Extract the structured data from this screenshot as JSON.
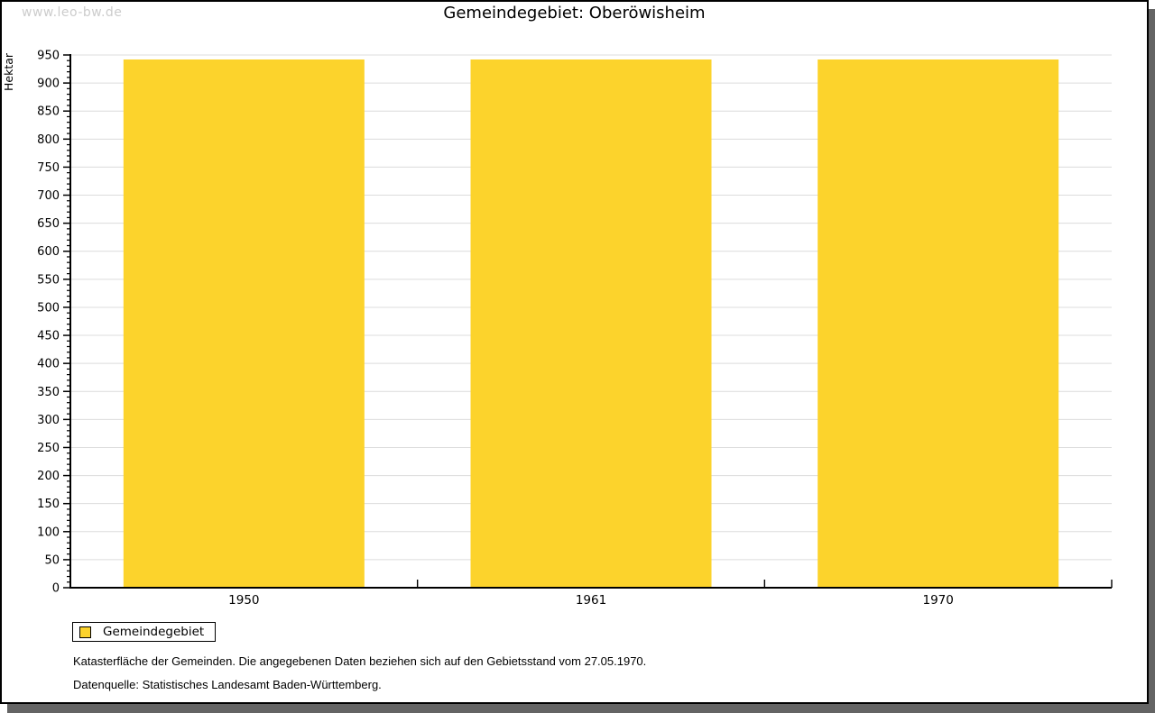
{
  "watermark": "www.leo-bw.de",
  "title": "Gemeindegebiet: Oberöwisheim",
  "legend": {
    "label": "Gemeindegebiet"
  },
  "footer": {
    "line1": "Katasterfläche der Gemeinden. Die angegebenen Daten beziehen sich auf den Gebietsstand vom 27.05.1970.",
    "line2": "Datenquelle: Statistisches Landesamt Baden-Württemberg."
  },
  "colors": {
    "bar": "#fcd32c",
    "grid": "#dcdcdc",
    "axis": "#000000",
    "watermark": "#cccccc",
    "shadow": "#646464"
  },
  "chart_data": {
    "type": "bar",
    "title": "Gemeindegebiet: Oberöwisheim",
    "categories": [
      "1950",
      "1961",
      "1970"
    ],
    "series": [
      {
        "name": "Gemeindegebiet",
        "values": [
          942,
          942,
          942
        ]
      }
    ],
    "xlabel": "",
    "ylabel": "Hektar",
    "ylim": [
      0,
      950
    ],
    "y_major_step": 50,
    "y_minor_step": 10,
    "grid": true,
    "legend_position": "bottom-left",
    "bar_color": "#fcd32c"
  }
}
